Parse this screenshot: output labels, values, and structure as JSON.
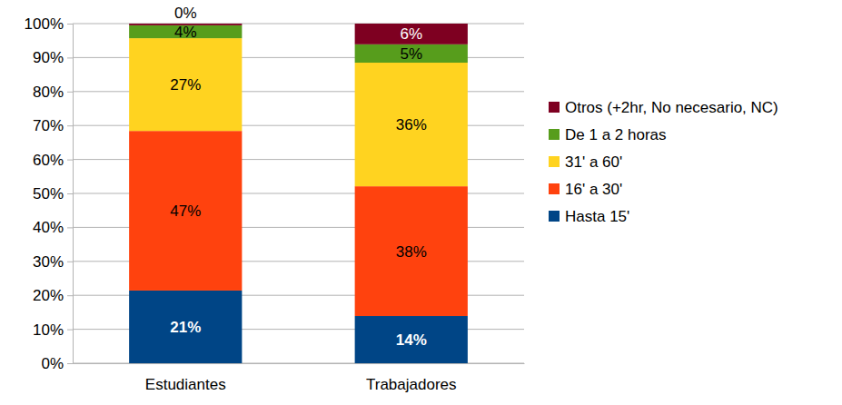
{
  "chart_data": {
    "type": "bar",
    "stacked": true,
    "data_labels": true,
    "grid": true,
    "legend": "right",
    "categories": [
      "Estudiantes",
      "Trabajadores"
    ],
    "ylim": [
      0,
      100
    ],
    "yticks": [
      {
        "value": 0,
        "label": "0%"
      },
      {
        "value": 10,
        "label": "10%"
      },
      {
        "value": 20,
        "label": "20%"
      },
      {
        "value": 30,
        "label": "30%"
      },
      {
        "value": 40,
        "label": "40%"
      },
      {
        "value": 50,
        "label": "50%"
      },
      {
        "value": 60,
        "label": "60%"
      },
      {
        "value": 70,
        "label": "70%"
      },
      {
        "value": 80,
        "label": "80%"
      },
      {
        "value": 90,
        "label": "90%"
      },
      {
        "value": 100,
        "label": "100%"
      }
    ],
    "series": [
      {
        "name": "Hasta 15'",
        "color": "#004586",
        "values": [
          21.4,
          13.9
        ],
        "value_labels": [
          "21%",
          "14%"
        ]
      },
      {
        "name": "16' a 30'",
        "color": "#ff420e",
        "values": [
          47,
          38.2
        ],
        "value_labels": [
          "47%",
          "38%"
        ]
      },
      {
        "name": "31' a 60'",
        "color": "#ffd320",
        "values": [
          27.3,
          36.4
        ],
        "value_labels": [
          "27%",
          "36%"
        ]
      },
      {
        "name": "De 1 a 2 horas",
        "color": "#579d1c",
        "values": [
          3.8,
          5.4
        ],
        "value_labels": [
          "4%",
          "5%"
        ]
      },
      {
        "name": "Otros (+2hr, No necesario, NC)",
        "color": "#7e0021",
        "values": [
          0.5,
          6.1
        ],
        "value_labels": [
          "0%",
          "6%"
        ]
      }
    ]
  }
}
